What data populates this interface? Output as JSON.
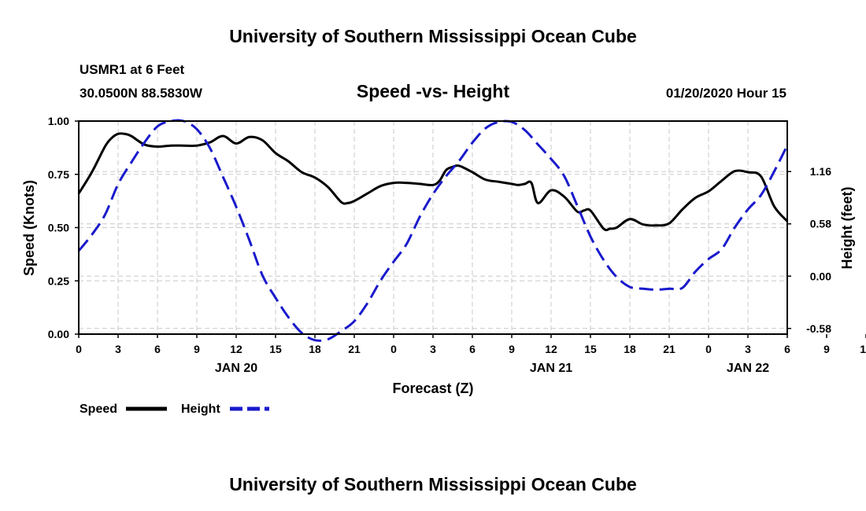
{
  "header": {
    "title": "University of Southern Mississippi Ocean Cube",
    "station": "USMR1 at 6 Feet",
    "location": "30.0500N 88.5830W",
    "subtitle": "Speed -vs- Height",
    "datetime": "01/20/2020 Hour 15"
  },
  "footer": {
    "title": "University of Southern Mississippi Ocean Cube"
  },
  "colors": {
    "speed": "#000000",
    "height": "#1a1acc",
    "grid": "#c8c8c8"
  },
  "chart_data": {
    "type": "line",
    "title": "Speed -vs- Height",
    "xlabel": "Forecast (Z)",
    "ylabel": "Speed (Knots)",
    "y2label": "Height (feet)",
    "x_hours_range": [
      0,
      54
    ],
    "x_tick_step": 3,
    "x_tick_labels": [
      "0",
      "3",
      "6",
      "9",
      "12",
      "15",
      "18",
      "21",
      "0",
      "3",
      "6",
      "9",
      "12",
      "15",
      "18",
      "21",
      "0",
      "3",
      "6",
      "9",
      "12",
      "15",
      "18",
      "21",
      "0",
      "3",
      "6"
    ],
    "date_labels": [
      {
        "label": "JAN 20",
        "hour": 12
      },
      {
        "label": "JAN 21",
        "hour": 36
      },
      {
        "label": "JAN 22",
        "hour": 51
      }
    ],
    "ylim": [
      0,
      1
    ],
    "y_ticks": [
      0,
      0.25,
      0.5,
      0.75,
      1.0
    ],
    "y_tick_labels": [
      "0.00",
      "0.25",
      "0.50",
      "0.75",
      "1.00"
    ],
    "y2lim": [
      -0.643,
      1.72
    ],
    "y2_ticks": [
      -0.58,
      0.0,
      0.58,
      1.16
    ],
    "y2_tick_labels": [
      "-0.58",
      "0.00",
      "0.58",
      "1.16"
    ],
    "grid": true,
    "legend": [
      {
        "label": "Speed",
        "style": "solid"
      },
      {
        "label": "Height",
        "style": "dashed"
      }
    ],
    "series": [
      {
        "name": "Speed",
        "axis": "left",
        "style": "solid",
        "x": [
          0,
          1,
          2,
          2.5,
          3,
          3.5,
          4,
          5,
          6,
          7,
          8,
          9,
          10,
          11,
          12,
          13,
          14,
          15,
          16,
          17,
          18,
          19,
          20,
          20.5,
          21,
          22,
          23,
          24,
          25,
          26,
          27,
          27.5,
          28,
          28.5,
          29,
          30,
          31,
          32,
          33,
          33.5,
          34,
          34.5,
          35,
          36,
          37,
          38,
          38.5,
          39,
          40,
          40.5,
          41,
          42,
          43,
          44,
          45,
          46,
          47,
          48,
          49,
          50,
          51,
          52,
          53,
          54
        ],
        "values": [
          0.66,
          0.76,
          0.88,
          0.92,
          0.94,
          0.94,
          0.93,
          0.89,
          0.88,
          0.885,
          0.885,
          0.885,
          0.9,
          0.93,
          0.895,
          0.925,
          0.91,
          0.85,
          0.81,
          0.76,
          0.735,
          0.69,
          0.62,
          0.615,
          0.625,
          0.66,
          0.695,
          0.71,
          0.71,
          0.705,
          0.7,
          0.72,
          0.77,
          0.785,
          0.79,
          0.76,
          0.725,
          0.715,
          0.705,
          0.7,
          0.705,
          0.71,
          0.615,
          0.675,
          0.645,
          0.575,
          0.58,
          0.58,
          0.495,
          0.495,
          0.5,
          0.54,
          0.515,
          0.51,
          0.52,
          0.585,
          0.64,
          0.67,
          0.72,
          0.765,
          0.76,
          0.74,
          0.6,
          0.53
        ]
      },
      {
        "name": "Height",
        "axis": "right",
        "style": "dashed",
        "x": [
          0,
          1,
          2,
          3,
          4,
          5,
          6,
          7,
          8,
          9,
          10,
          11,
          12,
          13,
          14,
          15,
          16,
          17,
          18,
          19,
          20,
          21,
          22,
          23,
          24,
          25,
          26,
          27,
          28,
          29,
          30,
          31,
          32,
          33,
          34,
          35,
          36,
          37,
          38,
          39,
          40,
          41,
          42,
          43,
          44,
          45,
          46,
          47,
          48,
          49,
          50,
          51,
          52,
          53,
          54
        ],
        "values": [
          0.28,
          0.46,
          0.68,
          1.02,
          1.26,
          1.48,
          1.66,
          1.72,
          1.72,
          1.63,
          1.42,
          1.1,
          0.77,
          0.4,
          0.01,
          -0.24,
          -0.46,
          -0.63,
          -0.71,
          -0.7,
          -0.61,
          -0.5,
          -0.3,
          -0.05,
          0.16,
          0.36,
          0.66,
          0.91,
          1.11,
          1.28,
          1.48,
          1.64,
          1.71,
          1.71,
          1.62,
          1.46,
          1.3,
          1.11,
          0.78,
          0.44,
          0.18,
          -0.01,
          -0.12,
          -0.14,
          -0.15,
          -0.14,
          -0.13,
          0.05,
          0.19,
          0.3,
          0.54,
          0.74,
          0.9,
          1.16,
          1.45
        ]
      }
    ]
  }
}
